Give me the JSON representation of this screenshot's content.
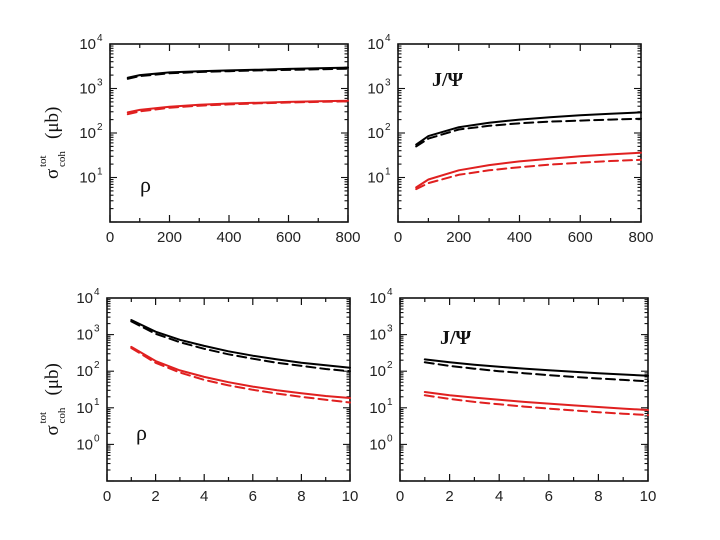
{
  "chart_data": [
    {
      "type": "line",
      "panel": "top-left",
      "label": "ρ",
      "ylabel": "σ",
      "ylabel_sup": "tot",
      "ylabel_sub": "coh",
      "ylabel_unit": "(μb)",
      "xlim": [
        0,
        800
      ],
      "ylim_exp": [
        0,
        4
      ],
      "yscale": "log",
      "xticks": [
        "0",
        "200",
        "400",
        "600",
        "800"
      ],
      "yticks": [
        {
          "base": "10",
          "exp": "1"
        },
        {
          "base": "10",
          "exp": "2"
        },
        {
          "base": "10",
          "exp": "3"
        },
        {
          "base": "10",
          "exp": "4"
        }
      ],
      "x": [
        60,
        100,
        200,
        300,
        400,
        500,
        600,
        700,
        800
      ],
      "series": [
        {
          "name": "black-solid",
          "color": "#000000",
          "style": "solid",
          "values": [
            1750,
            2000,
            2300,
            2450,
            2550,
            2650,
            2750,
            2850,
            2950
          ]
        },
        {
          "name": "black-dashed",
          "color": "#000000",
          "style": "dashed",
          "values": [
            1650,
            1900,
            2200,
            2350,
            2450,
            2550,
            2620,
            2700,
            2780
          ]
        },
        {
          "name": "red-solid",
          "color": "#e02020",
          "style": "solid",
          "values": [
            290,
            330,
            390,
            430,
            460,
            480,
            500,
            515,
            530
          ]
        },
        {
          "name": "red-dashed",
          "color": "#e02020",
          "style": "dashed",
          "values": [
            265,
            305,
            370,
            410,
            440,
            465,
            485,
            500,
            515
          ]
        }
      ]
    },
    {
      "type": "line",
      "panel": "top-right",
      "label": "J/Ψ",
      "xlim": [
        0,
        800
      ],
      "ylim_exp": [
        0,
        4
      ],
      "yscale": "log",
      "xticks": [
        "0",
        "200",
        "400",
        "600",
        "800"
      ],
      "yticks": [
        {
          "base": "10",
          "exp": "1"
        },
        {
          "base": "10",
          "exp": "2"
        },
        {
          "base": "10",
          "exp": "3"
        },
        {
          "base": "10",
          "exp": "4"
        }
      ],
      "x": [
        60,
        100,
        200,
        300,
        400,
        500,
        600,
        700,
        800
      ],
      "series": [
        {
          "name": "black-solid",
          "color": "#000000",
          "style": "solid",
          "values": [
            55,
            85,
            135,
            170,
            200,
            225,
            250,
            270,
            290
          ]
        },
        {
          "name": "black-dashed",
          "color": "#000000",
          "style": "dashed",
          "values": [
            50,
            75,
            120,
            145,
            165,
            180,
            190,
            200,
            210
          ]
        },
        {
          "name": "red-solid",
          "color": "#e02020",
          "style": "solid",
          "values": [
            6,
            9,
            14.5,
            19,
            23,
            26.5,
            30,
            33,
            36
          ]
        },
        {
          "name": "red-dashed",
          "color": "#e02020",
          "style": "dashed",
          "values": [
            5.5,
            7.5,
            11.5,
            14.5,
            17,
            19.5,
            21.5,
            23.5,
            25
          ]
        }
      ]
    },
    {
      "type": "line",
      "panel": "bottom-left",
      "label": "ρ",
      "ylabel": "σ",
      "ylabel_sup": "tot",
      "ylabel_sub": "coh",
      "ylabel_unit": "(μb)",
      "xlim": [
        0,
        10
      ],
      "ylim_exp": [
        -1,
        4
      ],
      "yscale": "log",
      "xticks": [
        "0",
        "2",
        "4",
        "6",
        "8",
        "10"
      ],
      "yticks": [
        {
          "base": "10",
          "exp": "0"
        },
        {
          "base": "10",
          "exp": "1"
        },
        {
          "base": "10",
          "exp": "2"
        },
        {
          "base": "10",
          "exp": "3"
        },
        {
          "base": "10",
          "exp": "4"
        }
      ],
      "x": [
        1,
        2,
        3,
        4,
        5,
        6,
        7,
        8,
        9,
        10
      ],
      "series": [
        {
          "name": "black-solid",
          "color": "#000000",
          "style": "solid",
          "values": [
            2500,
            1200,
            720,
            490,
            350,
            265,
            210,
            170,
            145,
            125
          ]
        },
        {
          "name": "black-dashed",
          "color": "#000000",
          "style": "dashed",
          "values": [
            2300,
            1050,
            620,
            410,
            290,
            220,
            170,
            140,
            115,
            100
          ]
        },
        {
          "name": "red-solid",
          "color": "#e02020",
          "style": "solid",
          "values": [
            460,
            190,
            105,
            70,
            50,
            38,
            30,
            25,
            21,
            18.5
          ]
        },
        {
          "name": "red-dashed",
          "color": "#e02020",
          "style": "dashed",
          "values": [
            430,
            170,
            92,
            58,
            41,
            31,
            24.5,
            20,
            16.5,
            14
          ]
        }
      ]
    },
    {
      "type": "line",
      "panel": "bottom-right",
      "label": "J/Ψ",
      "xlim": [
        0,
        10
      ],
      "ylim_exp": [
        -1,
        4
      ],
      "yscale": "log",
      "xticks": [
        "0",
        "2",
        "4",
        "6",
        "8",
        "10"
      ],
      "yticks": [
        {
          "base": "10",
          "exp": "0"
        },
        {
          "base": "10",
          "exp": "1"
        },
        {
          "base": "10",
          "exp": "2"
        },
        {
          "base": "10",
          "exp": "3"
        },
        {
          "base": "10",
          "exp": "4"
        }
      ],
      "x": [
        1,
        2,
        3,
        4,
        5,
        6,
        7,
        8,
        9,
        10
      ],
      "series": [
        {
          "name": "black-solid",
          "color": "#000000",
          "style": "solid",
          "values": [
            210,
            175,
            150,
            132,
            118,
            106,
            96,
            88,
            81,
            75
          ]
        },
        {
          "name": "black-dashed",
          "color": "#000000",
          "style": "dashed",
          "values": [
            175,
            140,
            117,
            100,
            88,
            78,
            70,
            63,
            58,
            53
          ]
        },
        {
          "name": "red-solid",
          "color": "#e02020",
          "style": "solid",
          "values": [
            27,
            22,
            19,
            16.5,
            14.5,
            13,
            11.6,
            10.5,
            9.5,
            8.7
          ]
        },
        {
          "name": "red-dashed",
          "color": "#e02020",
          "style": "dashed",
          "values": [
            22,
            17.5,
            14.5,
            12.5,
            10.8,
            9.5,
            8.5,
            7.6,
            6.9,
            6.3
          ]
        }
      ]
    }
  ]
}
